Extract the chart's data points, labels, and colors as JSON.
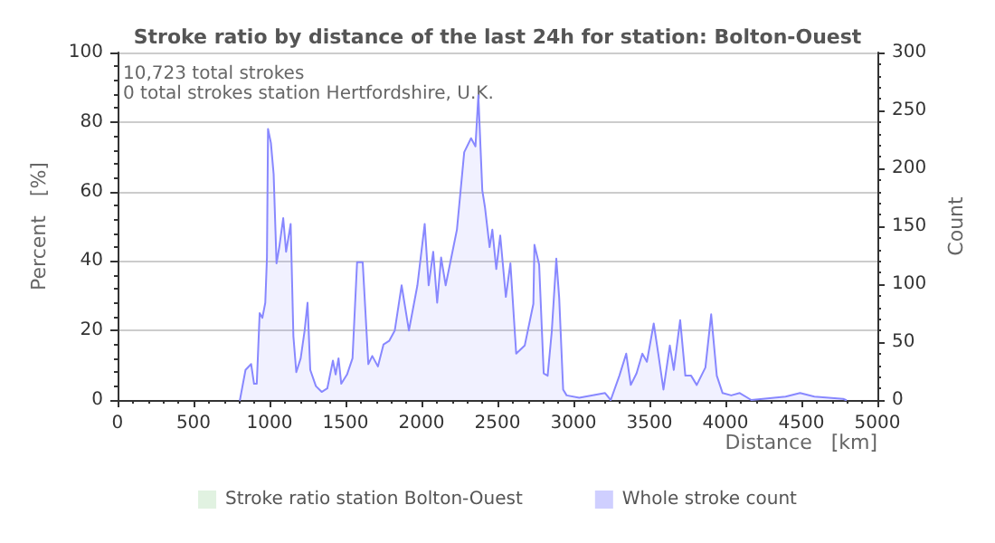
{
  "chart_data": {
    "type": "area",
    "title": "Stroke ratio by distance of the last 24h for station: Bolton-Ouest",
    "xlabel": "Distance   [km]",
    "ylabel": "Percent   [%]",
    "y2label": "Count",
    "annotations": [
      "10,723 total strokes",
      "0 total strokes station Hertfordshire, U.K."
    ],
    "xlim": [
      0,
      5000
    ],
    "xticks": [
      0,
      500,
      1000,
      1500,
      2000,
      2500,
      3000,
      3500,
      4000,
      4500,
      5000
    ],
    "ylim": [
      0,
      100
    ],
    "yticks": [
      0,
      20,
      40,
      60,
      80,
      100
    ],
    "y2lim": [
      0,
      300
    ],
    "y2ticks": [
      0,
      50,
      100,
      150,
      200,
      250,
      300
    ],
    "grid": "y",
    "legend": "bottom",
    "marker": "none",
    "line_style": "solid",
    "series": [
      {
        "name": "Stroke ratio station Bolton-Ouest",
        "color": "#b3dfb3"
      },
      {
        "name": "Whole stroke count",
        "color": "#8888ff",
        "axis": "y2",
        "x": [
          805,
          842,
          879,
          898,
          916,
          935,
          953,
          972,
          983,
          990,
          1009,
          1027,
          1046,
          1064,
          1090,
          1109,
          1139,
          1157,
          1176,
          1205,
          1231,
          1250,
          1268,
          1305,
          1343,
          1380,
          1417,
          1435,
          1454,
          1472,
          1510,
          1546,
          1576,
          1613,
          1650,
          1676,
          1713,
          1750,
          1787,
          1824,
          1869,
          1917,
          1973,
          2021,
          2047,
          2077,
          2103,
          2129,
          2159,
          2196,
          2233,
          2281,
          2326,
          2355,
          2374,
          2400,
          2418,
          2448,
          2466,
          2492,
          2518,
          2555,
          2585,
          2623,
          2679,
          2736,
          2743,
          2774,
          2804,
          2830,
          2857,
          2887,
          2906,
          2932,
          2955,
          3038,
          3208,
          3245,
          3302,
          3347,
          3377,
          3415,
          3453,
          3483,
          3528,
          3558,
          3592,
          3634,
          3660,
          3702,
          3736,
          3774,
          3811,
          3868,
          3906,
          3943,
          3981,
          4038,
          4094,
          4170,
          4396,
          4491,
          4585,
          4774,
          4793
        ],
        "values": [
          0,
          26,
          31,
          14,
          14,
          75,
          71,
          84,
          123,
          234,
          222,
          195,
          118,
          132,
          157,
          128,
          152,
          55,
          24,
          36,
          60,
          84,
          26,
          12,
          7,
          10,
          34,
          22,
          36,
          14,
          22,
          36,
          119,
          119,
          31,
          38,
          29,
          48,
          51,
          60,
          99,
          60,
          99,
          152,
          99,
          128,
          84,
          123,
          99,
          123,
          147,
          214,
          226,
          219,
          263,
          181,
          166,
          132,
          147,
          113,
          142,
          89,
          118,
          40,
          47,
          83,
          134,
          117,
          23,
          21,
          59,
          122,
          88,
          9,
          4,
          2,
          6,
          0,
          21,
          40,
          13,
          23,
          40,
          33,
          66,
          40,
          9,
          47,
          26,
          69,
          21,
          21,
          13,
          28,
          74,
          21,
          6,
          4,
          6,
          0,
          3,
          6,
          3,
          1,
          0
        ]
      }
    ]
  }
}
